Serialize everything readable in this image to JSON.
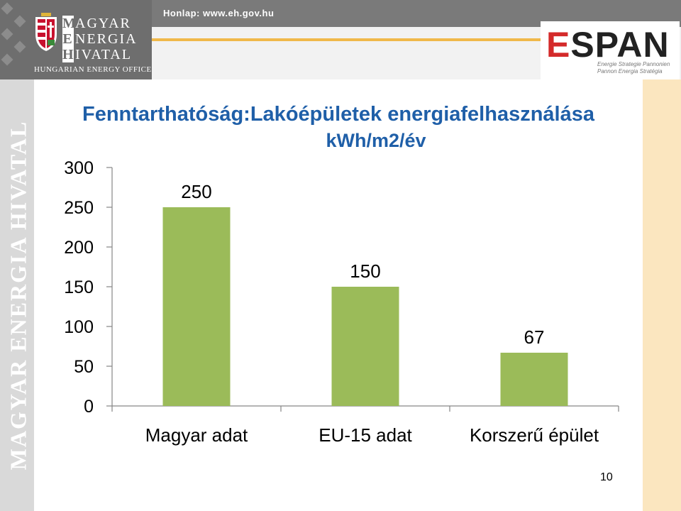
{
  "header": {
    "website": "Honlap: www.eh.gov.hu",
    "logo": {
      "lines": [
        {
          "initial": "M",
          "rest": "AGYAR"
        },
        {
          "initial": "E",
          "rest": "NERGIA"
        },
        {
          "initial": "H",
          "rest": "IVATAL"
        }
      ],
      "subtitle": "HUNGARIAN ENERGY OFFICE"
    },
    "espan": {
      "wordmark_e": "E",
      "wordmark_rest": "SPAN",
      "tagline1": "Energie Strategie Pannonien",
      "tagline2": "Pannon Energia Stratégia"
    }
  },
  "side_text": "MAGYAR ENERGIA HIVATAL",
  "page_number": "10",
  "colors": {
    "bar": "#9bbb59",
    "title": "#1f5fa8",
    "axis": "#868686"
  },
  "chart_data": {
    "type": "bar",
    "title": "Fenntarthatóság:Lakóépületek energiafelhasználása",
    "subtitle": "kWh/m2/év",
    "categories": [
      "Magyar adat",
      "EU-15 adat",
      "Korszerű épület"
    ],
    "values": [
      250,
      150,
      67
    ],
    "data_labels": [
      "250",
      "150",
      "67"
    ],
    "ylim": [
      0,
      300
    ],
    "yticks": [
      "0",
      "50",
      "100",
      "150",
      "200",
      "250",
      "300"
    ],
    "xlabel": "",
    "ylabel": "",
    "grid": false,
    "legend": "none"
  }
}
